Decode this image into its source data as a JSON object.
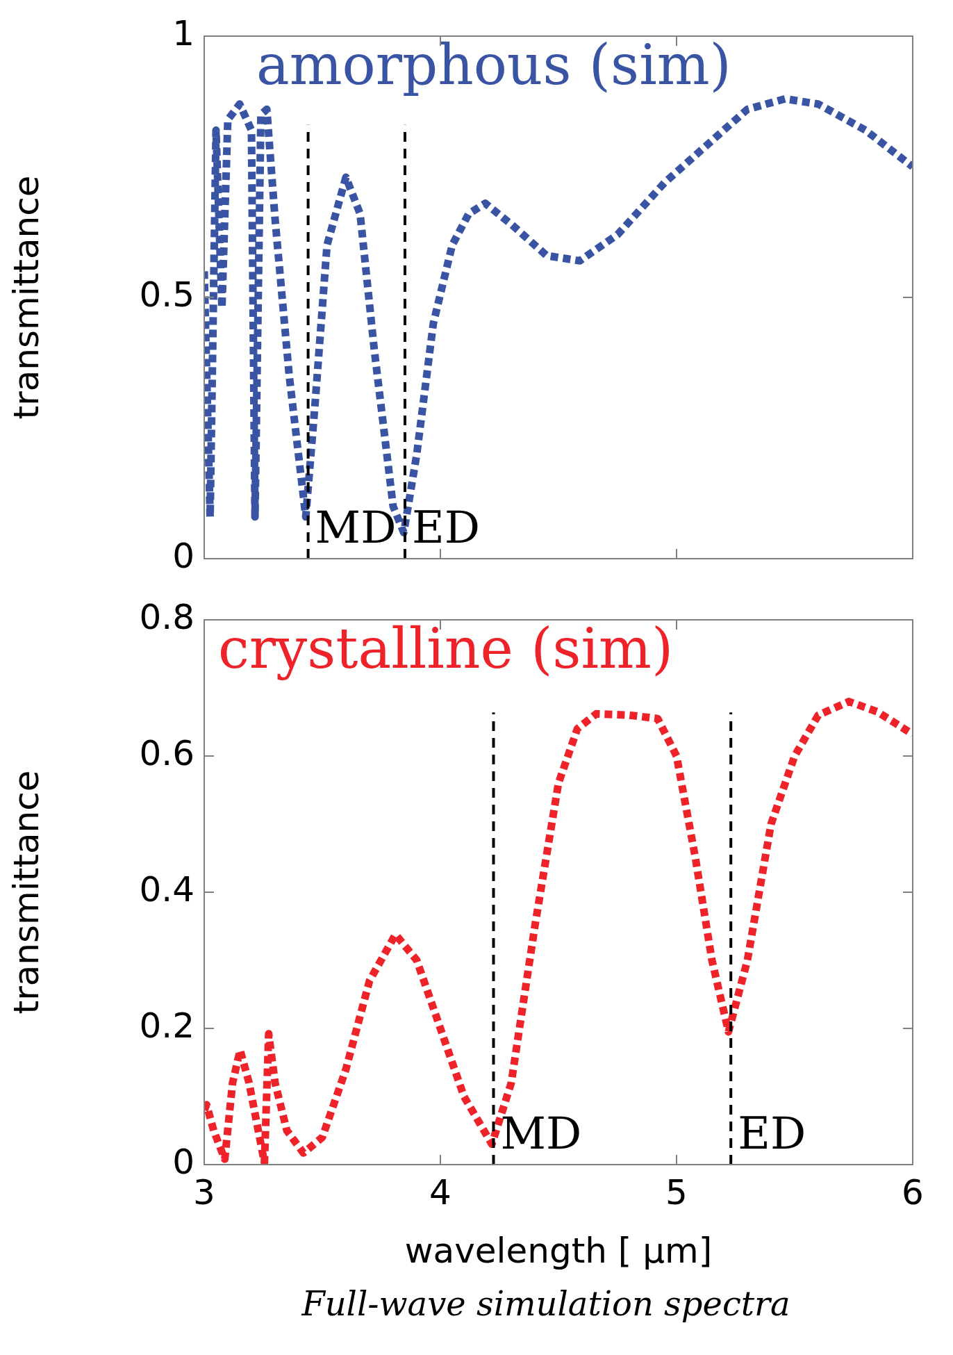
{
  "chart_data": [
    {
      "type": "line",
      "ylabel": "transmittance",
      "xlim": [
        3,
        6
      ],
      "xticks": [
        3,
        4,
        5,
        6
      ],
      "ylim": [
        0,
        1
      ],
      "yticks": [
        0,
        0.5,
        1
      ],
      "tick_labels": "y",
      "grid": false,
      "legend": false,
      "marker": "none",
      "line_style": "dotted",
      "series": [
        {
          "name": "amorphous (sim)",
          "color": "#3a54a4",
          "x": [
            3.0,
            3.025,
            3.05,
            3.075,
            3.1,
            3.15,
            3.2,
            3.215,
            3.24,
            3.265,
            3.3,
            3.36,
            3.43,
            3.47,
            3.52,
            3.6,
            3.66,
            3.72,
            3.8,
            3.845,
            3.9,
            3.97,
            4.05,
            4.12,
            4.19,
            4.3,
            4.45,
            4.59,
            4.75,
            4.95,
            5.15,
            5.3,
            5.46,
            5.6,
            5.8,
            6.0
          ],
          "values": [
            0.55,
            0.08,
            0.82,
            0.48,
            0.84,
            0.87,
            0.82,
            0.08,
            0.85,
            0.86,
            0.65,
            0.35,
            0.08,
            0.3,
            0.6,
            0.73,
            0.66,
            0.4,
            0.1,
            0.05,
            0.2,
            0.45,
            0.6,
            0.66,
            0.68,
            0.64,
            0.58,
            0.57,
            0.62,
            0.72,
            0.8,
            0.86,
            0.88,
            0.87,
            0.82,
            0.75
          ]
        }
      ],
      "ref_lines": [
        {
          "axis": "x",
          "value": 3.44,
          "label": "MD",
          "color": "#000000",
          "line_style": "dashed"
        },
        {
          "axis": "x",
          "value": 3.85,
          "label": "ED",
          "color": "#000000",
          "line_style": "dashed"
        }
      ]
    },
    {
      "type": "line",
      "xlabel": "wavelength [ μm]",
      "ylabel": "transmittance",
      "xlim": [
        3,
        6
      ],
      "xticks": [
        3,
        4,
        5,
        6
      ],
      "ylim": [
        0,
        0.8
      ],
      "yticks": [
        0,
        0.2,
        0.4,
        0.6,
        0.8
      ],
      "grid": false,
      "legend": false,
      "marker": "none",
      "line_style": "dotted",
      "series": [
        {
          "name": "crystalline (sim)",
          "color": "#ee2229",
          "x": [
            3.0,
            3.01,
            3.04,
            3.087,
            3.12,
            3.152,
            3.19,
            3.255,
            3.273,
            3.3,
            3.35,
            3.42,
            3.5,
            3.6,
            3.7,
            3.81,
            3.9,
            4.0,
            4.1,
            4.218,
            4.3,
            4.4,
            4.5,
            4.58,
            4.66,
            4.8,
            4.92,
            5.0,
            5.08,
            5.15,
            5.22,
            5.3,
            5.4,
            5.5,
            5.6,
            5.73,
            5.85,
            6.0
          ],
          "values": [
            0.08,
            0.088,
            0.05,
            0.008,
            0.12,
            0.168,
            0.12,
            0.003,
            0.192,
            0.12,
            0.05,
            0.017,
            0.04,
            0.14,
            0.27,
            0.338,
            0.3,
            0.2,
            0.1,
            0.03,
            0.12,
            0.35,
            0.56,
            0.64,
            0.662,
            0.66,
            0.655,
            0.6,
            0.45,
            0.3,
            0.195,
            0.3,
            0.5,
            0.6,
            0.66,
            0.68,
            0.665,
            0.632
          ]
        }
      ],
      "ref_lines": [
        {
          "axis": "x",
          "value": 4.225,
          "label": "MD",
          "color": "#000000",
          "line_style": "dashed"
        },
        {
          "axis": "x",
          "value": 5.23,
          "label": "ED",
          "color": "#000000",
          "line_style": "dashed"
        }
      ],
      "annotations": [
        "Full-wave simulation spectra"
      ]
    }
  ]
}
